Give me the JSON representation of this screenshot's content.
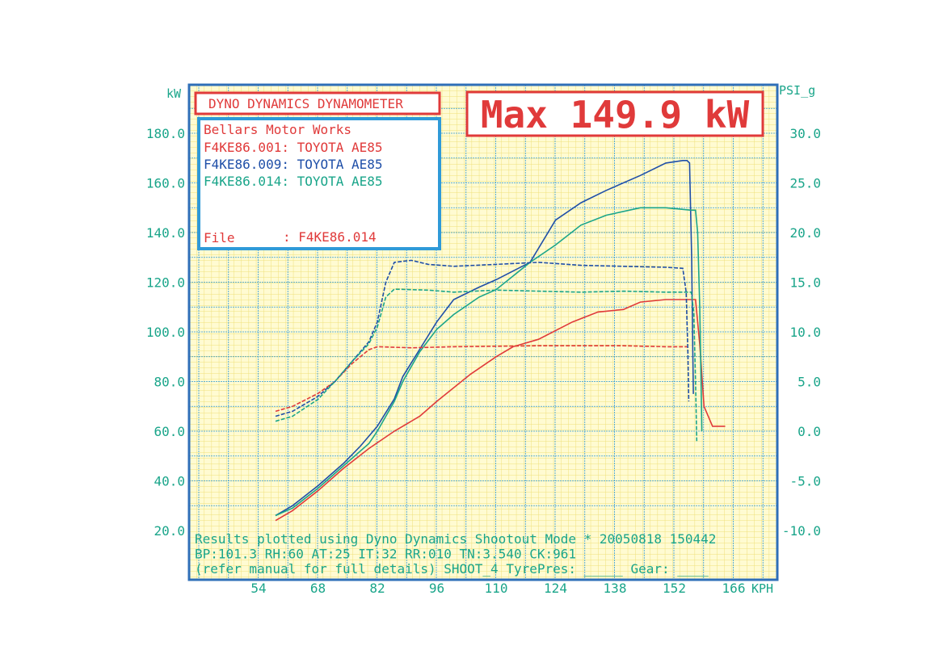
{
  "chart_data": {
    "type": "line",
    "banner_title": "DYNO DYNAMICS DYNAMOMETER",
    "max_label": "Max 149.9 kW",
    "company": "Bellars Motor Works",
    "legend": [
      {
        "id": "F4KE86.001",
        "label": "F4KE86.001: TOYOTA AE85",
        "color": "#e03a3a"
      },
      {
        "id": "F4KE86.009",
        "label": "F4KE86.009: TOYOTA AE85",
        "color": "#1f4fa8"
      },
      {
        "id": "F4KE86.014",
        "label": "F4KE86.014: TOYOTA AE85",
        "color": "#1aa58a"
      }
    ],
    "file_label": "File",
    "file_value": ": F4KE86.014",
    "left_axis": {
      "unit": "kW",
      "range": [
        20,
        200
      ],
      "ticks": [
        "180.0",
        "160.0",
        "140.0",
        "120.0",
        "100.0",
        "80.0",
        "60.0",
        "40.0",
        "20.0"
      ]
    },
    "right_axis": {
      "unit": "PSI_g",
      "range": [
        -10,
        35
      ],
      "ticks": [
        "30.0",
        "25.0",
        "20.0",
        "15.0",
        "10.0",
        "5.0",
        "0.0",
        "-5.0",
        "-10.0"
      ]
    },
    "x_axis": {
      "unit": "KPH",
      "range": [
        45,
        172
      ],
      "ticks": [
        "54",
        "68",
        "82",
        "96",
        "110",
        "124",
        "138",
        "152",
        "166"
      ]
    },
    "grid": true,
    "footer": [
      "Results plotted using Dyno Dynamics Shootout Mode * 20050818 150442",
      "BP:101.3 RH:60 AT:25 IT:32  RR:010 TN:3.540 CK:961",
      "(refer manual for full details) SHOOT_4  TyrePres: _____ Gear: ____"
    ],
    "series": [
      {
        "name": "F4KE86.001 power",
        "color": "#e03a3a",
        "axis": "left",
        "points": [
          [
            58,
            24
          ],
          [
            62,
            28
          ],
          [
            68,
            36
          ],
          [
            74,
            45
          ],
          [
            80,
            53
          ],
          [
            86,
            60
          ],
          [
            92,
            66
          ],
          [
            96,
            72
          ],
          [
            104,
            83
          ],
          [
            110,
            90
          ],
          [
            114,
            94
          ],
          [
            120,
            97
          ],
          [
            128,
            104
          ],
          [
            134,
            108
          ],
          [
            140,
            109
          ],
          [
            144,
            112
          ],
          [
            150,
            113
          ],
          [
            156,
            113
          ],
          [
            157,
            113
          ],
          [
            158,
            95
          ],
          [
            159,
            70
          ],
          [
            161,
            62
          ],
          [
            164,
            62
          ]
        ]
      },
      {
        "name": "F4KE86.009 power",
        "color": "#1f4fa8",
        "axis": "left",
        "points": [
          [
            58,
            26
          ],
          [
            62,
            30
          ],
          [
            68,
            38
          ],
          [
            74,
            47
          ],
          [
            78,
            54
          ],
          [
            82,
            62
          ],
          [
            86,
            73
          ],
          [
            88,
            82
          ],
          [
            92,
            93
          ],
          [
            96,
            104
          ],
          [
            100,
            113
          ],
          [
            106,
            118
          ],
          [
            110,
            121
          ],
          [
            118,
            128
          ],
          [
            124,
            145
          ],
          [
            130,
            152
          ],
          [
            136,
            157
          ],
          [
            144,
            163
          ],
          [
            150,
            168
          ],
          [
            154,
            169
          ],
          [
            155,
            169
          ],
          [
            155.6,
            168
          ],
          [
            156.1,
            130
          ],
          [
            156.3,
            100
          ],
          [
            156.5,
            75
          ]
        ]
      },
      {
        "name": "F4KE86.014 power",
        "color": "#1aa58a",
        "axis": "left",
        "points": [
          [
            58,
            26
          ],
          [
            62,
            29
          ],
          [
            68,
            37
          ],
          [
            74,
            46
          ],
          [
            80,
            55
          ],
          [
            82,
            60
          ],
          [
            86,
            72
          ],
          [
            88,
            80
          ],
          [
            92,
            92
          ],
          [
            96,
            101
          ],
          [
            100,
            107
          ],
          [
            106,
            114
          ],
          [
            110,
            117
          ],
          [
            118,
            128
          ],
          [
            124,
            135
          ],
          [
            130,
            143
          ],
          [
            136,
            147
          ],
          [
            144,
            150
          ],
          [
            150,
            150
          ],
          [
            156,
            149
          ],
          [
            157,
            149
          ],
          [
            157.5,
            140
          ],
          [
            158,
            110
          ],
          [
            158.3,
            80
          ],
          [
            158.5,
            60
          ]
        ]
      },
      {
        "name": "F4KE86.001 boost",
        "color": "#e03a3a",
        "axis": "right",
        "points": [
          [
            58,
            2
          ],
          [
            62,
            2.5
          ],
          [
            68,
            3.8
          ],
          [
            72,
            5
          ],
          [
            76,
            6.8
          ],
          [
            80,
            8.2
          ],
          [
            82,
            8.5
          ],
          [
            90,
            8.4
          ],
          [
            100,
            8.5
          ],
          [
            120,
            8.6
          ],
          [
            140,
            8.6
          ],
          [
            150,
            8.5
          ],
          [
            155,
            8.5
          ]
        ]
      },
      {
        "name": "F4KE86.009 boost",
        "color": "#1f4fa8",
        "axis": "right",
        "points": [
          [
            58,
            1.5
          ],
          [
            62,
            2
          ],
          [
            68,
            3.5
          ],
          [
            72,
            5
          ],
          [
            76,
            7
          ],
          [
            80,
            9
          ],
          [
            82,
            11
          ],
          [
            84,
            15
          ],
          [
            86,
            17
          ],
          [
            90,
            17.2
          ],
          [
            94,
            16.8
          ],
          [
            100,
            16.6
          ],
          [
            110,
            16.8
          ],
          [
            120,
            17
          ],
          [
            130,
            16.7
          ],
          [
            140,
            16.6
          ],
          [
            150,
            16.5
          ],
          [
            154,
            16.4
          ],
          [
            154.8,
            14
          ],
          [
            155.2,
            8
          ],
          [
            155.4,
            3
          ]
        ]
      },
      {
        "name": "F4KE86.014 boost",
        "color": "#1aa58a",
        "axis": "right",
        "points": [
          [
            58,
            1
          ],
          [
            62,
            1.5
          ],
          [
            68,
            3.2
          ],
          [
            72,
            5
          ],
          [
            76,
            7
          ],
          [
            80,
            8.8
          ],
          [
            82,
            10.5
          ],
          [
            84,
            13.5
          ],
          [
            86,
            14.3
          ],
          [
            94,
            14.2
          ],
          [
            100,
            14
          ],
          [
            110,
            14.2
          ],
          [
            120,
            14.1
          ],
          [
            130,
            14
          ],
          [
            140,
            14.1
          ],
          [
            150,
            14
          ],
          [
            156,
            14
          ],
          [
            156.6,
            12
          ],
          [
            157,
            5
          ],
          [
            157.3,
            -1
          ]
        ]
      }
    ]
  }
}
